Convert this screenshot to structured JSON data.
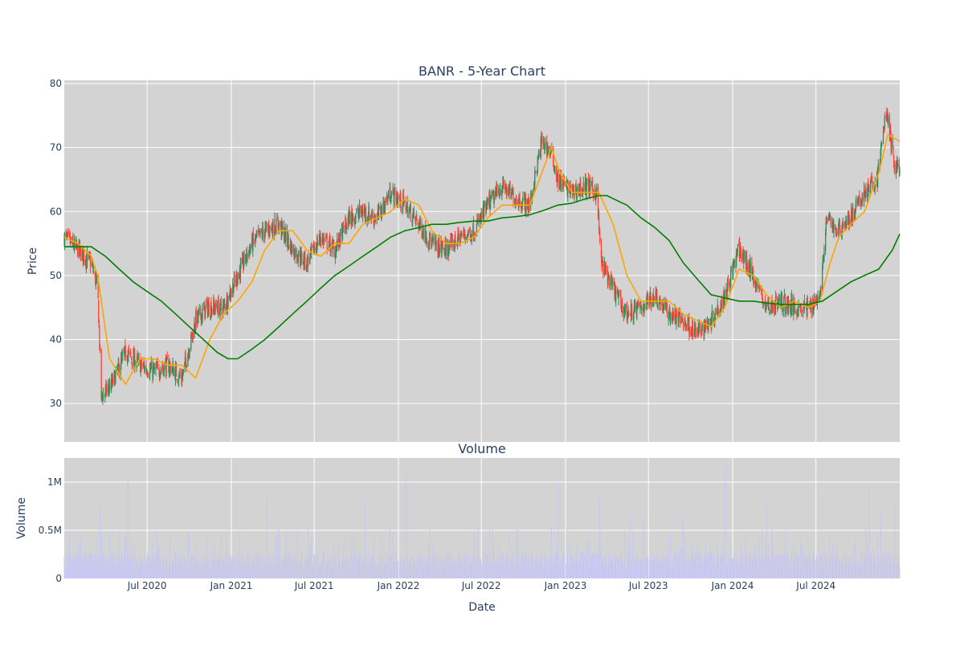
{
  "chart_data": [
    {
      "type": "candlestick",
      "title": "BANR - 5-Year Chart",
      "xlabel": "",
      "ylabel": "Price",
      "ylim": [
        24,
        80.5
      ],
      "yticks": [
        30,
        40,
        50,
        60,
        70,
        80
      ],
      "xrange": [
        "2020-01-02",
        "2024-12-31"
      ],
      "xticks": [
        "2020-07-01",
        "2021-01-01",
        "2021-07-01",
        "2022-01-01",
        "2022-07-01",
        "2023-01-01",
        "2023-07-01",
        "2024-01-01",
        "2024-07-01"
      ],
      "grid": true,
      "colors": {
        "increasing": "#2e8b57",
        "decreasing": "#ff4136",
        "ma_short": "#ffa500",
        "ma_long": "#008000",
        "plot_bg": "#d3d3d3"
      },
      "series": [
        {
          "role": "close",
          "x": [
            "2020-01-02",
            "2020-02-01",
            "2020-03-01",
            "2020-03-15",
            "2020-03-23",
            "2020-04-15",
            "2020-05-15",
            "2020-06-15",
            "2020-07-15",
            "2020-08-15",
            "2020-09-15",
            "2020-10-15",
            "2020-11-09",
            "2020-12-15",
            "2021-01-15",
            "2021-02-15",
            "2021-03-15",
            "2021-04-15",
            "2021-05-15",
            "2021-06-15",
            "2021-07-15",
            "2021-08-15",
            "2021-09-15",
            "2021-10-15",
            "2021-11-15",
            "2021-12-15",
            "2022-01-15",
            "2022-02-15",
            "2022-03-15",
            "2022-04-15",
            "2022-05-15",
            "2022-06-15",
            "2022-07-15",
            "2022-08-15",
            "2022-09-15",
            "2022-10-15",
            "2022-11-10",
            "2022-12-01",
            "2022-12-15",
            "2023-01-15",
            "2023-02-15",
            "2023-03-10",
            "2023-03-20",
            "2023-04-15",
            "2023-05-15",
            "2023-06-15",
            "2023-07-15",
            "2023-08-15",
            "2023-09-15",
            "2023-10-15",
            "2023-11-15",
            "2023-12-15",
            "2024-01-15",
            "2024-02-15",
            "2024-03-15",
            "2024-04-15",
            "2024-05-15",
            "2024-06-15",
            "2024-07-10",
            "2024-07-25",
            "2024-08-15",
            "2024-09-15",
            "2024-10-15",
            "2024-11-12",
            "2024-12-01",
            "2024-12-20"
          ],
          "values": [
            56,
            54,
            52,
            48,
            31,
            33,
            38,
            36,
            35,
            36,
            34,
            43,
            45,
            45,
            50,
            55,
            57,
            58,
            54,
            52,
            56,
            54,
            59,
            60,
            59,
            63,
            61,
            58,
            55,
            54,
            56,
            57,
            61,
            64,
            62,
            61,
            71,
            69,
            65,
            63,
            64,
            63,
            52,
            48,
            44,
            45,
            47,
            44,
            43,
            41,
            43,
            47,
            54,
            50,
            45,
            46,
            45,
            45,
            47,
            59,
            57,
            59,
            63,
            65,
            76,
            67
          ]
        },
        {
          "name": "",
          "role": "ma_short",
          "x": [
            "2020-01-02",
            "2020-02-01",
            "2020-03-01",
            "2020-03-15",
            "2020-04-10",
            "2020-05-15",
            "2020-06-15",
            "2020-07-15",
            "2020-08-15",
            "2020-09-15",
            "2020-10-15",
            "2020-11-15",
            "2020-12-15",
            "2021-01-15",
            "2021-02-15",
            "2021-03-15",
            "2021-04-15",
            "2021-05-15",
            "2021-06-15",
            "2021-07-15",
            "2021-08-15",
            "2021-09-15",
            "2021-10-15",
            "2021-11-15",
            "2021-12-15",
            "2022-01-15",
            "2022-02-15",
            "2022-03-15",
            "2022-04-15",
            "2022-05-15",
            "2022-06-15",
            "2022-07-15",
            "2022-08-15",
            "2022-09-15",
            "2022-10-15",
            "2022-11-10",
            "2022-12-01",
            "2022-12-20",
            "2023-01-15",
            "2023-02-15",
            "2023-03-15",
            "2023-04-15",
            "2023-05-15",
            "2023-06-15",
            "2023-07-15",
            "2023-08-15",
            "2023-09-15",
            "2023-10-15",
            "2023-11-15",
            "2023-12-15",
            "2024-01-15",
            "2024-02-15",
            "2024-03-15",
            "2024-04-15",
            "2024-05-15",
            "2024-06-15",
            "2024-07-10",
            "2024-08-01",
            "2024-08-20",
            "2024-09-15",
            "2024-10-15",
            "2024-11-15",
            "2024-12-05",
            "2024-12-31"
          ],
          "values": [
            56,
            55,
            53,
            50,
            37,
            33,
            37,
            37,
            36,
            36,
            34,
            40,
            44,
            46,
            49,
            54,
            57,
            57,
            54,
            53,
            55,
            55,
            58,
            59,
            60,
            62,
            61,
            57,
            55,
            55,
            56,
            59,
            61,
            61,
            61,
            66,
            70,
            66,
            63,
            63,
            63,
            58,
            50,
            46,
            46,
            46,
            44,
            43,
            42,
            45,
            51,
            50,
            47,
            45,
            46,
            45,
            46,
            52,
            56,
            58,
            60,
            66,
            72,
            71
          ]
        },
        {
          "name": "",
          "role": "ma_long",
          "x": [
            "2020-01-02",
            "2020-02-01",
            "2020-03-01",
            "2020-04-01",
            "2020-05-01",
            "2020-06-01",
            "2020-07-01",
            "2020-08-01",
            "2020-09-01",
            "2020-10-01",
            "2020-11-01",
            "2020-12-01",
            "2020-12-25",
            "2021-01-15",
            "2021-02-15",
            "2021-03-15",
            "2021-04-15",
            "2021-05-15",
            "2021-06-15",
            "2021-07-15",
            "2021-08-15",
            "2021-09-15",
            "2021-10-15",
            "2021-11-15",
            "2021-12-15",
            "2022-01-15",
            "2022-02-15",
            "2022-03-15",
            "2022-04-15",
            "2022-05-15",
            "2022-06-15",
            "2022-07-15",
            "2022-08-15",
            "2022-09-15",
            "2022-10-15",
            "2022-11-15",
            "2022-12-15",
            "2023-01-15",
            "2023-02-15",
            "2023-03-15",
            "2023-04-01",
            "2023-04-15",
            "2023-05-15",
            "2023-06-15",
            "2023-07-15",
            "2023-08-15",
            "2023-09-15",
            "2023-10-15",
            "2023-11-15",
            "2023-12-15",
            "2024-01-15",
            "2024-02-15",
            "2024-03-15",
            "2024-04-15",
            "2024-05-15",
            "2024-06-15",
            "2024-07-15",
            "2024-08-15",
            "2024-09-15",
            "2024-10-15",
            "2024-11-15",
            "2024-12-15",
            "2024-12-31"
          ],
          "values": [
            54.5,
            54.5,
            54.5,
            53,
            51,
            49,
            47.5,
            46,
            44,
            42,
            40,
            38,
            37,
            37,
            38.5,
            40,
            42,
            44,
            46,
            48,
            50,
            51.5,
            53,
            54.5,
            56,
            57,
            57.5,
            58,
            58,
            58.3,
            58.5,
            58.5,
            59,
            59.2,
            59.5,
            60.2,
            61,
            61.3,
            62,
            62.5,
            62.5,
            62,
            61,
            59,
            57.5,
            55.5,
            52,
            49.5,
            47,
            46.5,
            46,
            46,
            45.7,
            45.5,
            45.5,
            45.5,
            46,
            47.5,
            49,
            50,
            51,
            54,
            56.5
          ]
        }
      ]
    },
    {
      "type": "bar",
      "title": "Volume",
      "xlabel": "Date",
      "ylabel": "Volume",
      "ylim": [
        0,
        1250000
      ],
      "yticks": [
        0,
        500000,
        1000000
      ],
      "ytick_labels": [
        "0",
        "0.5M",
        "1M"
      ],
      "xtick_labels": [
        "Jul 2020",
        "Jan 2021",
        "Jul 2021",
        "Jan 2022",
        "Jul 2022",
        "Jan 2023",
        "Jul 2023",
        "Jan 2024",
        "Jul 2024"
      ],
      "grid": true,
      "colors": {
        "bar": "#c7c7ef"
      },
      "spikes": {
        "x": [
          "2020-03-20",
          "2020-05-20",
          "2021-03-19",
          "2021-06-18",
          "2021-10-20",
          "2022-01-18",
          "2022-06-17",
          "2022-09-16",
          "2022-12-16",
          "2023-03-17",
          "2023-05-22",
          "2023-06-20",
          "2023-09-15",
          "2023-12-15",
          "2024-03-15",
          "2024-10-25",
          "2024-11-20",
          "2024-12-20"
        ],
        "values": [
          740000,
          1030000,
          840000,
          510000,
          780000,
          1100000,
          480000,
          500000,
          990000,
          840000,
          640000,
          620000,
          600000,
          1180000,
          790000,
          920000,
          650000,
          780000
        ]
      },
      "baseline_volume": 200000
    }
  ]
}
